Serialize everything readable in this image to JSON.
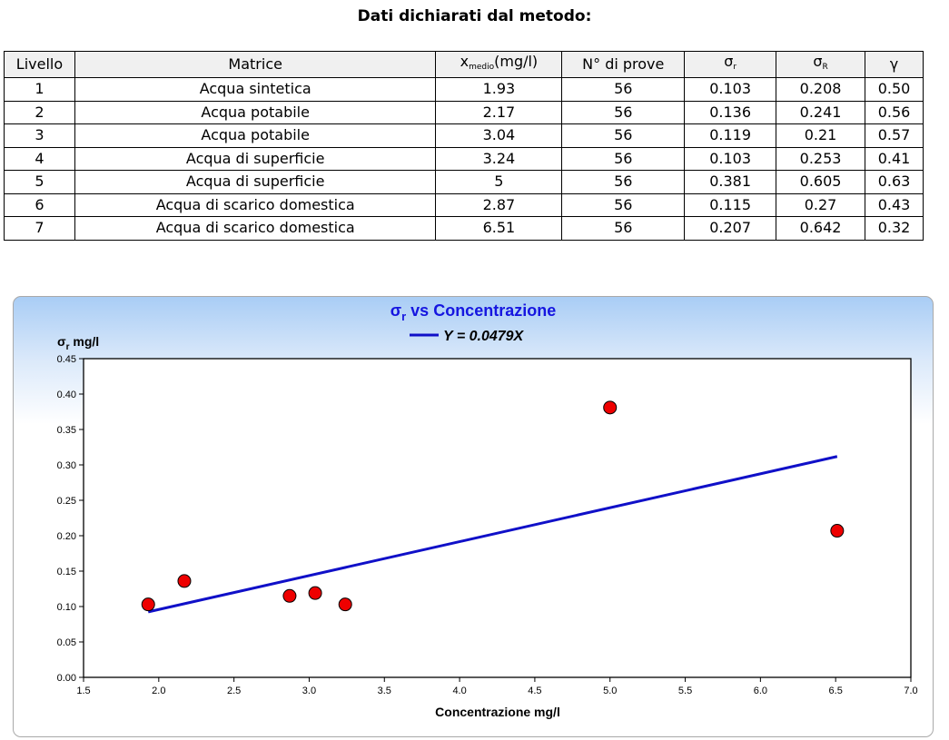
{
  "page": {
    "title": "Dati dichiarati dal metodo:"
  },
  "table": {
    "headers": {
      "livello": "Livello",
      "matrice": "Matrice",
      "xmedio_main": "x",
      "xmedio_sub": "medio",
      "xmedio_unit": "(mg/l)",
      "prove": "N° di prove",
      "sigma_r_main": "σ",
      "sigma_r_sub": "r",
      "sigma_R_main": "σ",
      "sigma_R_sub": "R",
      "gamma": "γ"
    },
    "rows": [
      [
        "1",
        "Acqua sintetica",
        "1.93",
        "56",
        "0.103",
        "0.208",
        "0.50"
      ],
      [
        "2",
        "Acqua potabile",
        "2.17",
        "56",
        "0.136",
        "0.241",
        "0.56"
      ],
      [
        "3",
        "Acqua potabile",
        "3.04",
        "56",
        "0.119",
        "0.21",
        "0.57"
      ],
      [
        "4",
        "Acqua di superficie",
        "3.24",
        "56",
        "0.103",
        "0.253",
        "0.41"
      ],
      [
        "5",
        "Acqua di superficie",
        "5",
        "56",
        "0.381",
        "0.605",
        "0.63"
      ],
      [
        "6",
        "Acqua di scarico domestica",
        "2.87",
        "56",
        "0.115",
        "0.27",
        "0.43"
      ],
      [
        "7",
        "Acqua di scarico domestica",
        "6.51",
        "56",
        "0.207",
        "0.642",
        "0.32"
      ]
    ]
  },
  "chart_data": {
    "type": "scatter",
    "title_main": "σ",
    "title_sub": "r",
    "title_rest": " vs Concentrazione",
    "ylabel_main": "σ",
    "ylabel_sub": "r",
    "ylabel_rest": " mg/l",
    "xlabel": "Concentrazione mg/l",
    "legend": [
      {
        "label": "Y = 0.0479X",
        "color": "#1010c8"
      }
    ],
    "xlim": [
      1.5,
      7.0
    ],
    "ylim": [
      0.0,
      0.45
    ],
    "x_ticks": [
      "1.5",
      "2.0",
      "2.5",
      "3.0",
      "3.5",
      "4.0",
      "4.5",
      "5.0",
      "5.5",
      "6.0",
      "6.5",
      "7.0"
    ],
    "y_ticks": [
      "0.00",
      "0.05",
      "0.10",
      "0.15",
      "0.20",
      "0.25",
      "0.30",
      "0.35",
      "0.40",
      "0.45"
    ],
    "points": [
      {
        "x": 1.93,
        "y": 0.103
      },
      {
        "x": 2.17,
        "y": 0.136
      },
      {
        "x": 3.04,
        "y": 0.119
      },
      {
        "x": 3.24,
        "y": 0.103
      },
      {
        "x": 5.0,
        "y": 0.381
      },
      {
        "x": 2.87,
        "y": 0.115
      },
      {
        "x": 6.51,
        "y": 0.207
      }
    ],
    "fit": {
      "slope": 0.0479,
      "x_start": 1.93,
      "x_end": 6.51,
      "color": "#1010c8"
    },
    "point_color": "#ee0000",
    "grid": false
  }
}
